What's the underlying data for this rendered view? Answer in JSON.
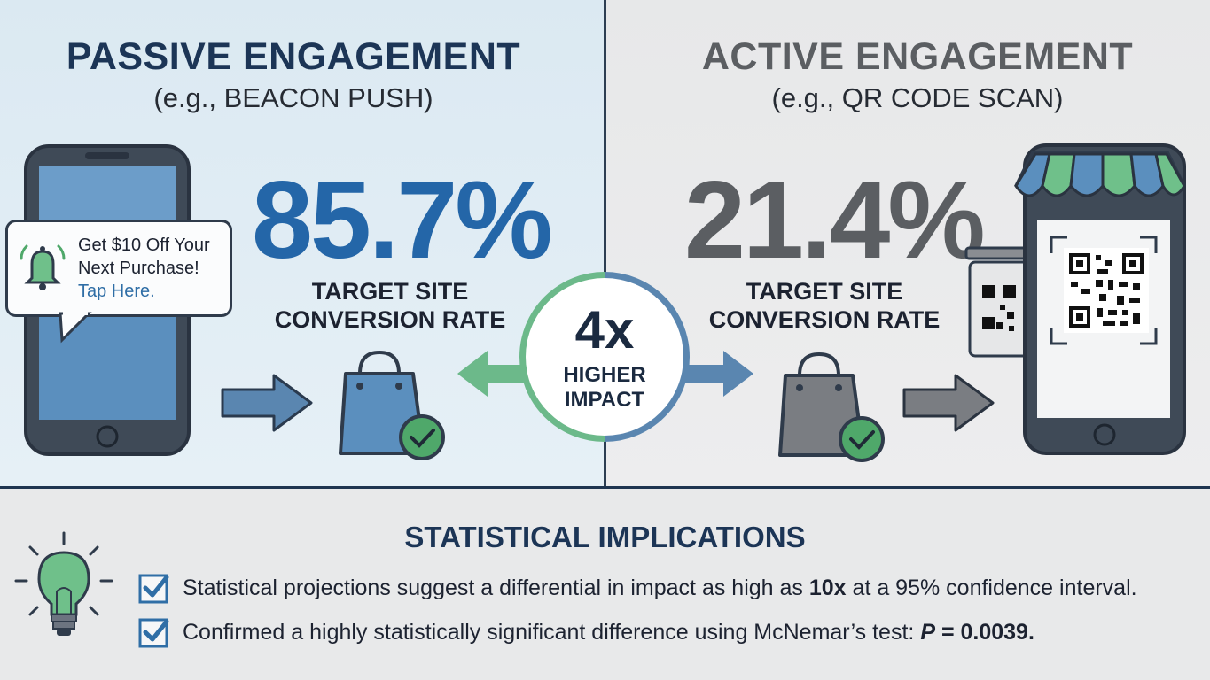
{
  "left": {
    "title": "PASSIVE ENGAGEMENT",
    "subtitle": "(e.g., BEACON PUSH)",
    "rate_value": "85.7%",
    "rate_label_line1": "TARGET SITE",
    "rate_label_line2": "CONVERSION RATE",
    "notification": {
      "line1": "Get $10 Off Your",
      "line2": "Next Purchase!",
      "link": "Tap Here."
    }
  },
  "right": {
    "title": "ACTIVE ENGAGEMENT",
    "subtitle": "(e.g., QR CODE SCAN)",
    "rate_value": "21.4%",
    "rate_label_line1": "TARGET SITE",
    "rate_label_line2": "CONVERSION RATE"
  },
  "center": {
    "multiplier": "4x",
    "label_line1": "HIGHER",
    "label_line2": "IMPACT"
  },
  "statistics": {
    "title": "STATISTICAL IMPLICATIONS",
    "items": [
      {
        "prefix": "Statistical projections suggest a differential in impact as high as ",
        "emphasis": "10x",
        "suffix": " at a 95% confidence interval."
      },
      {
        "prefix": "Confirmed a highly statistically significant difference using McNemar’s test: ",
        "emphasis_italic": "P",
        "emphasis": " = 0.0039."
      }
    ]
  },
  "colors": {
    "passive_blue": "#2466a8",
    "active_gray": "#5b5e62",
    "navy": "#1c3556",
    "check_green": "#4fa86a",
    "arrow_green": "#6cb98a",
    "arrow_blue": "#5a86b0"
  },
  "icons": [
    "smartphone-icon",
    "bell-icon",
    "right-arrow-icon",
    "shopping-bag-check-icon",
    "storefront-phone-icon",
    "qr-code-icon",
    "lightbulb-icon",
    "checkbox-icon"
  ]
}
